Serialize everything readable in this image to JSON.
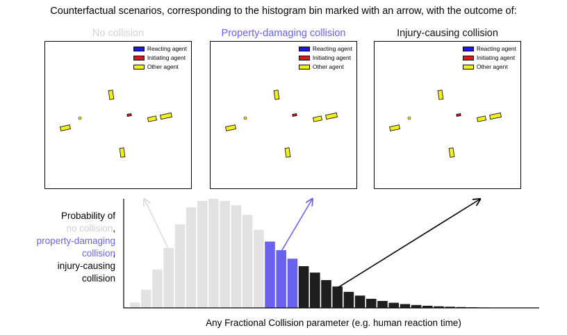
{
  "page": {
    "title": "Counterfactual scenarios, corresponding to the histogram bin marked with an arrow, with the outcome of:"
  },
  "panels": [
    {
      "title": "No collision",
      "color": "#d4d4d4"
    },
    {
      "title": "Property-damaging collision",
      "color": "#6a62ee"
    },
    {
      "title": "Injury-causing collision",
      "color": "#111111"
    }
  ],
  "legend": [
    {
      "label": "Reacting agent",
      "color": "#1a1ae6"
    },
    {
      "label": "Initiating agent",
      "color": "#d81b1b"
    },
    {
      "label": "Other agent",
      "color": "#f2ee1c"
    }
  ],
  "ylabel": {
    "line1": "Probability of",
    "no_collision": "no collision",
    "sep1": ",",
    "property": "property-damaging collision",
    "sep2": ",",
    "injury": "injury-causing collision"
  },
  "colors": {
    "no_collision": "#e2e2e2",
    "property": "#6a62ee",
    "injury": "#1e1e1e",
    "arrow_light": "#dcdcdc",
    "arrow_mid": "#6a62ee",
    "arrow_dark": "#000000"
  },
  "chart_data": {
    "type": "bar",
    "xlabel": "Any Fractional Collision parameter (e.g. human reaction time)",
    "ylabel": "Probability of no collision, property-damaging collision, injury-causing collision",
    "values": [
      0.05,
      0.17,
      0.36,
      0.56,
      0.78,
      0.94,
      1.0,
      1.02,
      1.0,
      0.96,
      0.87,
      0.73,
      0.62,
      0.54,
      0.46,
      0.39,
      0.33,
      0.26,
      0.2,
      0.15,
      0.115,
      0.085,
      0.065,
      0.048,
      0.036,
      0.027,
      0.02,
      0.015,
      0.011,
      0.008,
      0.006,
      0.004,
      0.003,
      0.002,
      0.001
    ],
    "outcome": [
      "none",
      "none",
      "none",
      "none",
      "none",
      "none",
      "none",
      "none",
      "none",
      "none",
      "none",
      "none",
      "property",
      "property",
      "property",
      "injury",
      "injury",
      "injury",
      "injury",
      "injury",
      "injury",
      "injury",
      "injury",
      "injury",
      "injury",
      "injury",
      "injury",
      "injury",
      "injury",
      "injury",
      "injury",
      "injury",
      "injury",
      "injury",
      "injury"
    ],
    "marked_bins": {
      "no_collision": 3,
      "property": 13,
      "injury": 18
    },
    "grid": false,
    "legend": "none"
  }
}
